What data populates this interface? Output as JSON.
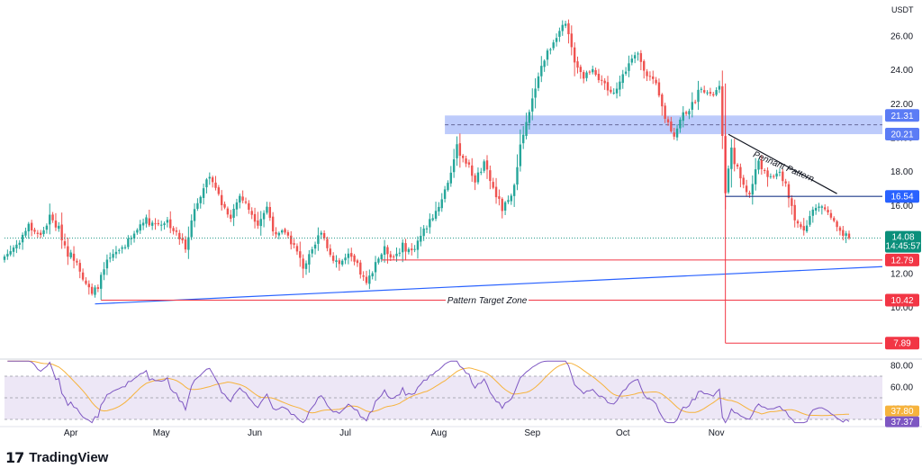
{
  "currency": "USDT",
  "brand": {
    "name": "TradingView",
    "logo_icon": "tradingview-logo-icon"
  },
  "colors": {
    "bull": "#26a69a",
    "bear": "#ef5350",
    "last_price": "#0b8f7b",
    "resistance_zone": "#5b7cf5",
    "support_line": "#f23645",
    "trendline": "#2962ff",
    "rsi": "#7e57c2",
    "rsi_ma": "#f6b33d",
    "rsi_band": "#ede7f6"
  },
  "chart_data": [
    {
      "type": "candlestick",
      "title": "",
      "y_scale": "linear",
      "ylim": [
        7.0,
        27.8
      ],
      "y_ticks": [
        10.0,
        12.0,
        14.0,
        16.0,
        18.0,
        20.0,
        22.0,
        24.0,
        26.0
      ],
      "x_ticks": [
        "Apr",
        "May",
        "Jun",
        "Jul",
        "Aug",
        "Sep",
        "Oct",
        "Nov"
      ],
      "grid": false,
      "last_price": {
        "value": "14.08",
        "countdown": "14:45:57"
      },
      "price_tags": [
        {
          "value": "21.31",
          "role": "resistance zone top"
        },
        {
          "value": "20.21",
          "role": "resistance zone bottom"
        },
        {
          "value": "16.54",
          "role": "pennant support"
        },
        {
          "value": "12.79",
          "role": "support"
        },
        {
          "value": "10.42",
          "role": "pattern target"
        },
        {
          "value": "7.89",
          "role": "measured move target"
        }
      ],
      "annotations": [
        "Pennant Pattern",
        "Pattern Target Zone"
      ],
      "close_path": [
        {
          "d": 0,
          "v": 13.0
        },
        {
          "d": 4,
          "v": 13.7
        },
        {
          "d": 8,
          "v": 14.8
        },
        {
          "d": 12,
          "v": 14.2
        },
        {
          "d": 15,
          "v": 15.3
        },
        {
          "d": 18,
          "v": 14.6
        },
        {
          "d": 21,
          "v": 13.2
        },
        {
          "d": 24,
          "v": 12.8
        },
        {
          "d": 26,
          "v": 11.8
        },
        {
          "d": 29,
          "v": 10.7
        },
        {
          "d": 31,
          "v": 11.3
        },
        {
          "d": 34,
          "v": 12.6
        },
        {
          "d": 38,
          "v": 13.4
        },
        {
          "d": 42,
          "v": 14.0
        },
        {
          "d": 46,
          "v": 15.2
        },
        {
          "d": 50,
          "v": 14.9
        },
        {
          "d": 54,
          "v": 15.1
        },
        {
          "d": 57,
          "v": 14.3
        },
        {
          "d": 60,
          "v": 13.6
        },
        {
          "d": 63,
          "v": 15.8
        },
        {
          "d": 66,
          "v": 17.2
        },
        {
          "d": 69,
          "v": 17.6
        },
        {
          "d": 72,
          "v": 16.1
        },
        {
          "d": 75,
          "v": 15.4
        },
        {
          "d": 78,
          "v": 16.6
        },
        {
          "d": 81,
          "v": 15.8
        },
        {
          "d": 84,
          "v": 15.0
        },
        {
          "d": 87,
          "v": 15.9
        },
        {
          "d": 90,
          "v": 14.1
        },
        {
          "d": 93,
          "v": 14.5
        },
        {
          "d": 96,
          "v": 13.6
        },
        {
          "d": 99,
          "v": 12.4
        },
        {
          "d": 102,
          "v": 13.2
        },
        {
          "d": 105,
          "v": 14.6
        },
        {
          "d": 108,
          "v": 13.1
        },
        {
          "d": 111,
          "v": 12.6
        },
        {
          "d": 114,
          "v": 13.0
        },
        {
          "d": 117,
          "v": 12.4
        },
        {
          "d": 120,
          "v": 11.3
        },
        {
          "d": 123,
          "v": 12.7
        },
        {
          "d": 126,
          "v": 13.4
        },
        {
          "d": 129,
          "v": 13.0
        },
        {
          "d": 132,
          "v": 13.6
        },
        {
          "d": 135,
          "v": 13.3
        },
        {
          "d": 138,
          "v": 14.2
        },
        {
          "d": 141,
          "v": 15.1
        },
        {
          "d": 144,
          "v": 16.0
        },
        {
          "d": 147,
          "v": 17.4
        },
        {
          "d": 150,
          "v": 19.4
        },
        {
          "d": 153,
          "v": 18.6
        },
        {
          "d": 156,
          "v": 17.5
        },
        {
          "d": 159,
          "v": 18.4
        },
        {
          "d": 162,
          "v": 17.0
        },
        {
          "d": 165,
          "v": 15.8
        },
        {
          "d": 168,
          "v": 16.4
        },
        {
          "d": 171,
          "v": 19.5
        },
        {
          "d": 174,
          "v": 21.4
        },
        {
          "d": 177,
          "v": 23.8
        },
        {
          "d": 180,
          "v": 25.0
        },
        {
          "d": 183,
          "v": 26.1
        },
        {
          "d": 186,
          "v": 26.6
        },
        {
          "d": 189,
          "v": 24.6
        },
        {
          "d": 192,
          "v": 23.6
        },
        {
          "d": 195,
          "v": 24.2
        },
        {
          "d": 198,
          "v": 23.2
        },
        {
          "d": 201,
          "v": 22.6
        },
        {
          "d": 204,
          "v": 23.3
        },
        {
          "d": 207,
          "v": 24.4
        },
        {
          "d": 210,
          "v": 24.9
        },
        {
          "d": 213,
          "v": 23.8
        },
        {
          "d": 216,
          "v": 23.0
        },
        {
          "d": 219,
          "v": 21.2
        },
        {
          "d": 222,
          "v": 20.2
        },
        {
          "d": 225,
          "v": 21.4
        },
        {
          "d": 228,
          "v": 21.9
        },
        {
          "d": 231,
          "v": 23.1
        },
        {
          "d": 234,
          "v": 22.4
        },
        {
          "d": 237,
          "v": 22.9
        },
        {
          "d": 239,
          "v": 16.9
        },
        {
          "d": 241,
          "v": 19.2
        },
        {
          "d": 244,
          "v": 17.6
        },
        {
          "d": 247,
          "v": 16.6
        },
        {
          "d": 250,
          "v": 18.7
        },
        {
          "d": 253,
          "v": 17.5
        },
        {
          "d": 256,
          "v": 18.0
        },
        {
          "d": 259,
          "v": 17.3
        },
        {
          "d": 262,
          "v": 15.0
        },
        {
          "d": 265,
          "v": 14.7
        },
        {
          "d": 268,
          "v": 15.7
        },
        {
          "d": 271,
          "v": 16.0
        },
        {
          "d": 274,
          "v": 15.3
        },
        {
          "d": 277,
          "v": 14.3
        },
        {
          "d": 280,
          "v": 14.08
        }
      ]
    },
    {
      "type": "line",
      "title": "",
      "ylim": [
        25,
        85
      ],
      "y_ticks": [
        40.0,
        60.0,
        80.0
      ],
      "band": [
        30,
        70
      ],
      "series": [
        {
          "label_value": "37.80",
          "role": "rsi-ma"
        },
        {
          "label_value": "37.37",
          "role": "rsi"
        }
      ]
    }
  ]
}
